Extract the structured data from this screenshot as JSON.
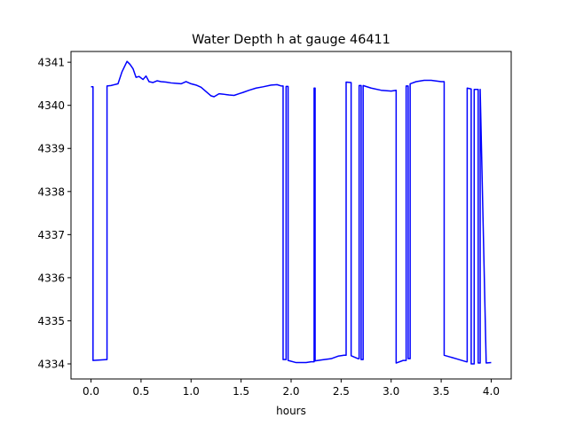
{
  "chart_data": {
    "type": "line",
    "title": "Water Depth h at gauge 46411",
    "xlabel": "hours",
    "ylabel": "",
    "xlim": [
      -0.2,
      4.2
    ],
    "ylim": [
      4333.65,
      4341.25
    ],
    "xticks": [
      0.0,
      0.5,
      1.0,
      1.5,
      2.0,
      2.5,
      3.0,
      3.5,
      4.0
    ],
    "xtick_labels": [
      "0.0",
      "0.5",
      "1.0",
      "1.5",
      "2.0",
      "2.5",
      "3.0",
      "3.5",
      "4.0"
    ],
    "yticks": [
      4334,
      4335,
      4336,
      4337,
      4338,
      4339,
      4340,
      4341
    ],
    "ytick_labels": [
      "4334",
      "4335",
      "4336",
      "4337",
      "4338",
      "4339",
      "4340",
      "4341"
    ],
    "grid": false,
    "series": [
      {
        "color": "#0000ff",
        "x": [
          0.0,
          0.02,
          0.02,
          0.16,
          0.16,
          0.2,
          0.27,
          0.31,
          0.36,
          0.39,
          0.42,
          0.45,
          0.48,
          0.52,
          0.55,
          0.58,
          0.62,
          0.66,
          0.7,
          0.75,
          0.8,
          0.85,
          0.9,
          0.95,
          1.0,
          1.05,
          1.1,
          1.15,
          1.2,
          1.23,
          1.28,
          1.32,
          1.38,
          1.43,
          1.48,
          1.52,
          1.58,
          1.65,
          1.72,
          1.8,
          1.86,
          1.9,
          1.92,
          1.92,
          1.95,
          1.95,
          1.97,
          1.97,
          2.05,
          2.15,
          2.2,
          2.23,
          2.23,
          2.24,
          2.24,
          2.3,
          2.4,
          2.47,
          2.53,
          2.55,
          2.55,
          2.6,
          2.6,
          2.67,
          2.68,
          2.68,
          2.7,
          2.7,
          2.72,
          2.72,
          2.8,
          2.9,
          3.0,
          3.05,
          3.05,
          3.12,
          3.15,
          3.15,
          3.17,
          3.17,
          3.19,
          3.19,
          3.25,
          3.33,
          3.4,
          3.5,
          3.53,
          3.53,
          3.65,
          3.75,
          3.76,
          3.76,
          3.8,
          3.8,
          3.83,
          3.83,
          3.87,
          3.87,
          3.89,
          3.89,
          3.95,
          4.0
        ],
        "y": [
          4340.43,
          4340.43,
          4334.08,
          4334.1,
          4340.45,
          4340.46,
          4340.5,
          4340.78,
          4341.02,
          4340.95,
          4340.85,
          4340.65,
          4340.67,
          4340.6,
          4340.68,
          4340.55,
          4340.53,
          4340.57,
          4340.55,
          4340.54,
          4340.52,
          4340.51,
          4340.5,
          4340.55,
          4340.5,
          4340.47,
          4340.42,
          4340.32,
          4340.22,
          4340.2,
          4340.27,
          4340.26,
          4340.24,
          4340.23,
          4340.27,
          4340.3,
          4340.35,
          4340.4,
          4340.43,
          4340.47,
          4340.48,
          4340.45,
          4340.45,
          4334.1,
          4334.1,
          4340.44,
          4340.44,
          4334.08,
          4334.03,
          4334.03,
          4334.05,
          4334.05,
          4340.4,
          4340.4,
          4334.07,
          4334.09,
          4334.12,
          4334.18,
          4334.2,
          4334.2,
          4340.54,
          4340.53,
          4334.19,
          4334.12,
          4334.12,
          4340.46,
          4340.46,
          4334.1,
          4334.1,
          4340.46,
          4340.4,
          4340.35,
          4340.33,
          4340.35,
          4334.02,
          4334.08,
          4334.08,
          4340.45,
          4340.45,
          4334.12,
          4334.12,
          4340.5,
          4340.55,
          4340.58,
          4340.58,
          4340.55,
          4340.55,
          4334.2,
          4334.12,
          4334.05,
          4334.05,
          4340.4,
          4340.38,
          4334.0,
          4334.0,
          4340.37,
          4340.37,
          4334.02,
          4334.02,
          4340.37,
          4334.02,
          4334.03
        ]
      }
    ]
  }
}
